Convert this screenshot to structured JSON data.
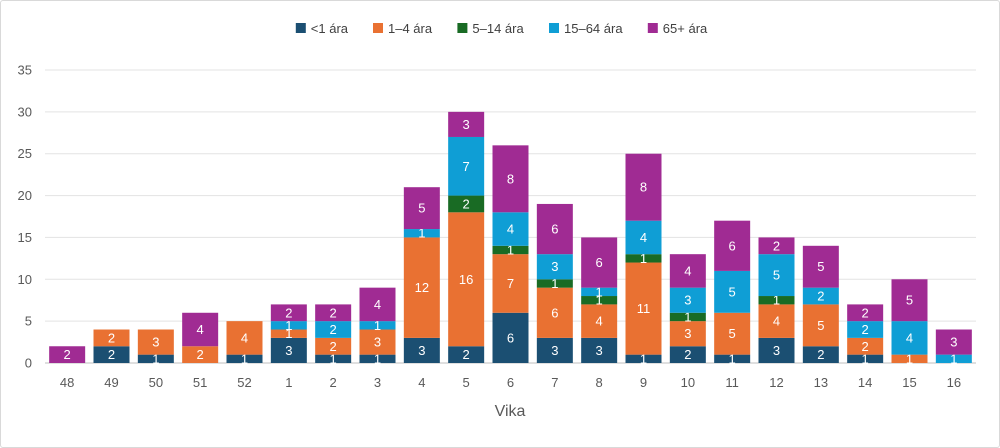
{
  "chart_data": {
    "type": "bar",
    "stacked": true,
    "title": "",
    "xlabel": "Vika",
    "ylabel": "",
    "ylim": [
      0,
      35
    ],
    "yticks": [
      0,
      5,
      10,
      15,
      20,
      25,
      30,
      35
    ],
    "grid": true,
    "legend_position": "top",
    "categories": [
      "48",
      "49",
      "50",
      "51",
      "52",
      "1",
      "2",
      "3",
      "4",
      "5",
      "6",
      "7",
      "8",
      "9",
      "10",
      "11",
      "12",
      "13",
      "14",
      "15",
      "16"
    ],
    "series": [
      {
        "name": "<1 ára",
        "color": "#1b4f72",
        "values": [
          0,
          2,
          1,
          0,
          1,
          3,
          1,
          1,
          3,
          2,
          6,
          3,
          3,
          1,
          2,
          1,
          3,
          2,
          1,
          0,
          0
        ]
      },
      {
        "name": "1–4 ára",
        "color": "#e97132",
        "values": [
          0,
          2,
          3,
          2,
          4,
          1,
          2,
          3,
          12,
          16,
          7,
          6,
          4,
          11,
          3,
          5,
          4,
          5,
          2,
          1,
          0
        ]
      },
      {
        "name": "5–14 ára",
        "color": "#196b24",
        "values": [
          0,
          0,
          0,
          0,
          0,
          0,
          0,
          0,
          0,
          2,
          1,
          1,
          1,
          1,
          1,
          0,
          1,
          0,
          0,
          0,
          0
        ]
      },
      {
        "name": "15–64 ára",
        "color": "#0f9ed5",
        "values": [
          0,
          0,
          0,
          0,
          0,
          1,
          2,
          1,
          1,
          7,
          4,
          3,
          1,
          4,
          3,
          5,
          5,
          2,
          2,
          4,
          1
        ]
      },
      {
        "name": "65+ ára",
        "color": "#a02b93",
        "values": [
          2,
          0,
          0,
          4,
          0,
          2,
          2,
          4,
          5,
          3,
          8,
          6,
          6,
          8,
          4,
          6,
          2,
          5,
          2,
          5,
          3
        ]
      }
    ]
  }
}
